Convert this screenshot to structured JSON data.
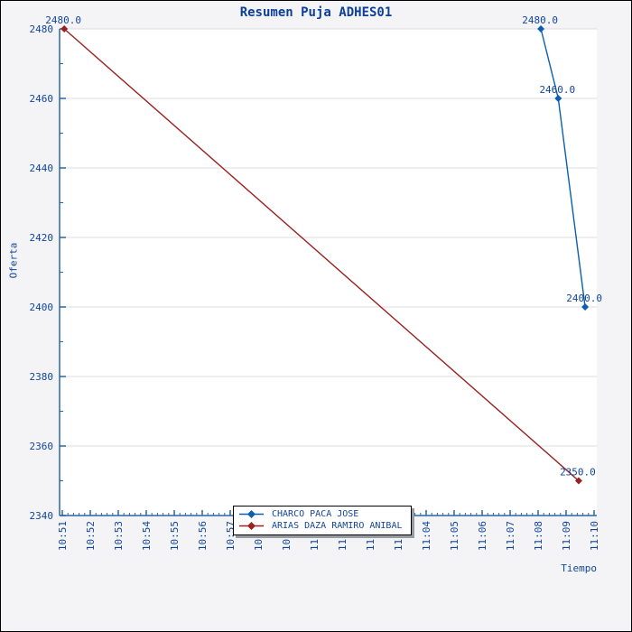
{
  "title": "Resumen Puja ADHES01",
  "colors": {
    "page_background": "#f4f4f6",
    "plot_background": "#ffffff",
    "axis": "#2b66a5",
    "grid": "#dcdcdc",
    "text": "#10459c",
    "title_text": "#0d3f99",
    "series_blue": "#0b5fae",
    "series_red": "#9a2121",
    "legend_border": "#000000",
    "legend_shadow": "#989ca2"
  },
  "chart_data": {
    "type": "line",
    "title": "Resumen Puja ADHES01",
    "xlabel": "Tiempo",
    "ylabel": "Oferta",
    "x_axis": {
      "tick_labels": [
        "10:51",
        "10:52",
        "10:53",
        "10:54",
        "10:55",
        "10:56",
        "10:57",
        "10:58",
        "10:59",
        "11:00",
        "11:01",
        "11:02",
        "11:03",
        "11:04",
        "11:05",
        "11:06",
        "11:07",
        "11:08",
        "11:09",
        "11:10"
      ],
      "minor_ticks_per_interval": 4
    },
    "y_axis": {
      "min": 2340,
      "max": 2480,
      "step": 20,
      "tick_labels": [
        "2340",
        "2360",
        "2380",
        "2400",
        "2420",
        "2440",
        "2460",
        "2480"
      ],
      "minor_ticks_per_interval": 1
    },
    "grid": "horizontal-only",
    "legend_position": "bottom-center",
    "t_unit": "minutes after 10:51 (estimated from plot geometry)",
    "series": [
      {
        "name": "CHARCO PACA JOSE",
        "color": "#0b5fae",
        "marker": "diamond",
        "points": [
          {
            "t": 17.1,
            "value": 2480,
            "label": "2480.0"
          },
          {
            "t": 17.72,
            "value": 2460,
            "label": "2460.0"
          },
          {
            "t": 18.68,
            "value": 2400,
            "label": "2400.0"
          }
        ]
      },
      {
        "name": "ARIAS DAZA RAMIRO ANIBAL",
        "color": "#9a2121",
        "marker": "diamond",
        "points": [
          {
            "t": 0.07,
            "value": 2480,
            "label": "2480.0"
          },
          {
            "t": 18.45,
            "value": 2350,
            "label": "2350.0"
          }
        ]
      }
    ]
  }
}
